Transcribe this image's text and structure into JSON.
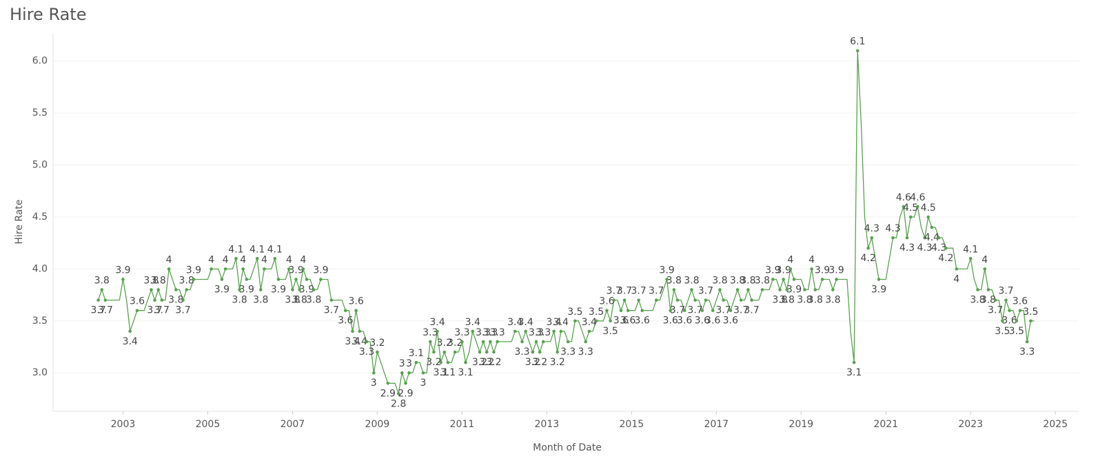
{
  "chart_data": {
    "type": "line",
    "title": "Hire Rate",
    "x_label": "Month of Date",
    "y_label": "Hire Rate",
    "x": [
      "2002-06",
      "2002-07",
      "2002-08",
      "2002-09",
      "2002-10",
      "2002-11",
      "2002-12",
      "2003-01",
      "2003-02",
      "2003-03",
      "2003-04",
      "2003-05",
      "2003-06",
      "2003-07",
      "2003-08",
      "2003-09",
      "2003-10",
      "2003-11",
      "2003-12",
      "2004-01",
      "2004-02",
      "2004-03",
      "2004-04",
      "2004-05",
      "2004-06",
      "2004-07",
      "2004-08",
      "2004-09",
      "2004-10",
      "2004-11",
      "2004-12",
      "2005-01",
      "2005-02",
      "2005-03",
      "2005-04",
      "2005-05",
      "2005-06",
      "2005-07",
      "2005-08",
      "2005-09",
      "2005-10",
      "2005-11",
      "2005-12",
      "2006-01",
      "2006-02",
      "2006-03",
      "2006-04",
      "2006-05",
      "2006-06",
      "2006-07",
      "2006-08",
      "2006-09",
      "2006-10",
      "2006-11",
      "2006-12",
      "2007-01",
      "2007-02",
      "2007-03",
      "2007-04",
      "2007-05",
      "2007-06",
      "2007-07",
      "2007-08",
      "2007-09",
      "2007-10",
      "2007-11",
      "2007-12",
      "2008-01",
      "2008-02",
      "2008-03",
      "2008-04",
      "2008-05",
      "2008-06",
      "2008-07",
      "2008-08",
      "2008-09",
      "2008-10",
      "2008-11",
      "2008-12",
      "2009-01",
      "2009-02",
      "2009-03",
      "2009-04",
      "2009-05",
      "2009-06",
      "2009-07",
      "2009-08",
      "2009-09",
      "2009-10",
      "2009-11",
      "2009-12",
      "2010-01",
      "2010-02",
      "2010-03",
      "2010-04",
      "2010-05",
      "2010-06",
      "2010-07",
      "2010-08",
      "2010-09",
      "2010-10",
      "2010-11",
      "2010-12",
      "2011-01",
      "2011-02",
      "2011-03",
      "2011-04",
      "2011-05",
      "2011-06",
      "2011-07",
      "2011-08",
      "2011-09",
      "2011-10",
      "2011-11",
      "2011-12",
      "2012-01",
      "2012-02",
      "2012-03",
      "2012-04",
      "2012-05",
      "2012-06",
      "2012-07",
      "2012-08",
      "2012-09",
      "2012-10",
      "2012-11",
      "2012-12",
      "2013-01",
      "2013-02",
      "2013-03",
      "2013-04",
      "2013-05",
      "2013-06",
      "2013-07",
      "2013-08",
      "2013-09",
      "2013-10",
      "2013-11",
      "2013-12",
      "2014-01",
      "2014-02",
      "2014-03",
      "2014-04",
      "2014-05",
      "2014-06",
      "2014-07",
      "2014-08",
      "2014-09",
      "2014-10",
      "2014-11",
      "2014-12",
      "2015-01",
      "2015-02",
      "2015-03",
      "2015-04",
      "2015-05",
      "2015-06",
      "2015-07",
      "2015-08",
      "2015-09",
      "2015-10",
      "2015-11",
      "2015-12",
      "2016-01",
      "2016-02",
      "2016-03",
      "2016-04",
      "2016-05",
      "2016-06",
      "2016-07",
      "2016-08",
      "2016-09",
      "2016-10",
      "2016-11",
      "2016-12",
      "2017-01",
      "2017-02",
      "2017-03",
      "2017-04",
      "2017-05",
      "2017-06",
      "2017-07",
      "2017-08",
      "2017-09",
      "2017-10",
      "2017-11",
      "2017-12",
      "2018-01",
      "2018-02",
      "2018-03",
      "2018-04",
      "2018-05",
      "2018-06",
      "2018-07",
      "2018-08",
      "2018-09",
      "2018-10",
      "2018-11",
      "2018-12",
      "2019-01",
      "2019-02",
      "2019-03",
      "2019-04",
      "2019-05",
      "2019-06",
      "2019-07",
      "2019-08",
      "2019-09",
      "2019-10",
      "2019-11",
      "2019-12",
      "2020-01",
      "2020-02",
      "2020-03",
      "2020-04",
      "2020-05",
      "2020-06",
      "2020-07",
      "2020-08",
      "2020-09",
      "2020-10",
      "2020-11",
      "2020-12",
      "2021-01",
      "2021-02",
      "2021-03",
      "2021-04",
      "2021-05",
      "2021-06",
      "2021-07",
      "2021-08",
      "2021-09",
      "2021-10",
      "2021-11",
      "2021-12",
      "2022-01",
      "2022-02",
      "2022-03",
      "2022-04",
      "2022-05",
      "2022-06",
      "2022-07",
      "2022-08",
      "2022-09",
      "2022-10",
      "2022-11",
      "2022-12",
      "2023-01",
      "2023-02",
      "2023-03",
      "2023-04",
      "2023-05",
      "2023-06",
      "2023-07",
      "2023-08",
      "2023-09",
      "2023-10",
      "2023-11",
      "2023-12",
      "2024-01",
      "2024-02",
      "2024-03",
      "2024-04",
      "2024-05",
      "2024-06",
      "2024-07"
    ],
    "series": [
      {
        "name": "Hire Rate",
        "color": "#59a14f",
        "values": [
          3.7,
          3.8,
          3.7,
          3.7,
          3.7,
          3.7,
          3.7,
          3.9,
          3.7,
          3.4,
          3.5,
          3.6,
          3.6,
          3.6,
          3.7,
          3.8,
          3.7,
          3.8,
          3.7,
          3.7,
          4.0,
          3.9,
          3.8,
          3.8,
          3.7,
          3.8,
          3.8,
          3.9,
          3.9,
          3.9,
          3.9,
          3.9,
          4.0,
          4.0,
          4.0,
          3.9,
          4.0,
          4.0,
          4.0,
          4.1,
          3.8,
          4.0,
          3.9,
          3.9,
          4.0,
          4.1,
          3.8,
          4.0,
          4.0,
          4.0,
          4.1,
          3.9,
          3.9,
          3.9,
          4.0,
          3.8,
          3.9,
          3.8,
          4.0,
          3.9,
          3.9,
          3.8,
          3.8,
          3.9,
          3.9,
          3.9,
          3.7,
          3.7,
          3.7,
          3.7,
          3.6,
          3.6,
          3.4,
          3.6,
          3.4,
          3.4,
          3.3,
          3.3,
          3.0,
          3.2,
          3.1,
          3.0,
          2.9,
          2.9,
          2.9,
          2.8,
          3.0,
          2.9,
          3.0,
          3.0,
          3.1,
          3.1,
          3.0,
          3.0,
          3.3,
          3.2,
          3.4,
          3.1,
          3.2,
          3.1,
          3.1,
          3.2,
          3.2,
          3.3,
          3.1,
          3.2,
          3.4,
          3.3,
          3.2,
          3.3,
          3.2,
          3.3,
          3.2,
          3.3,
          3.3,
          3.3,
          3.3,
          3.3,
          3.4,
          3.4,
          3.3,
          3.4,
          3.3,
          3.2,
          3.3,
          3.2,
          3.3,
          3.3,
          3.3,
          3.4,
          3.2,
          3.4,
          3.4,
          3.3,
          3.3,
          3.5,
          3.5,
          3.4,
          3.3,
          3.4,
          3.4,
          3.5,
          3.5,
          3.5,
          3.6,
          3.5,
          3.7,
          3.7,
          3.6,
          3.7,
          3.6,
          3.6,
          3.6,
          3.7,
          3.6,
          3.6,
          3.6,
          3.6,
          3.7,
          3.7,
          3.8,
          3.9,
          3.6,
          3.8,
          3.7,
          3.7,
          3.6,
          3.7,
          3.8,
          3.7,
          3.7,
          3.6,
          3.7,
          3.7,
          3.6,
          3.7,
          3.8,
          3.7,
          3.7,
          3.6,
          3.7,
          3.8,
          3.7,
          3.7,
          3.8,
          3.7,
          3.7,
          3.7,
          3.8,
          3.8,
          3.8,
          3.9,
          3.9,
          3.8,
          3.9,
          3.8,
          4.0,
          3.9,
          3.9,
          3.9,
          3.8,
          3.8,
          4.0,
          3.8,
          3.8,
          3.9,
          3.9,
          3.9,
          3.8,
          3.9,
          3.9,
          3.9,
          3.9,
          3.4,
          3.1,
          6.1,
          5.4,
          4.5,
          4.2,
          4.3,
          4.1,
          3.9,
          3.9,
          3.9,
          4.1,
          4.3,
          4.3,
          4.5,
          4.6,
          4.3,
          4.5,
          4.5,
          4.6,
          4.4,
          4.3,
          4.5,
          4.4,
          4.4,
          4.3,
          4.3,
          4.2,
          4.2,
          4.2,
          4.0,
          4.0,
          4.0,
          4.0,
          4.1,
          3.9,
          3.8,
          3.8,
          4.0,
          3.8,
          3.8,
          3.7,
          3.7,
          3.5,
          3.7,
          3.6,
          3.6,
          3.5,
          3.6,
          3.6,
          3.3,
          3.5,
          3.5
        ]
      }
    ],
    "xlim": [
      2001.35,
      2025.55
    ],
    "xticks": [
      2003,
      2005,
      2007,
      2009,
      2011,
      2013,
      2015,
      2017,
      2019,
      2021,
      2023,
      2025
    ],
    "ylim": [
      2.63,
      6.27
    ],
    "yticks": [
      {
        "value": 3,
        "label": "3.0"
      },
      {
        "value": 3.5,
        "label": "3.5"
      },
      {
        "value": 4,
        "label": "4.0"
      },
      {
        "value": 4.5,
        "label": "4.5"
      },
      {
        "value": 5,
        "label": "5.0"
      },
      {
        "value": 5.5,
        "label": "5.5"
      },
      {
        "value": 6,
        "label": "6.0"
      }
    ],
    "grid": true
  }
}
